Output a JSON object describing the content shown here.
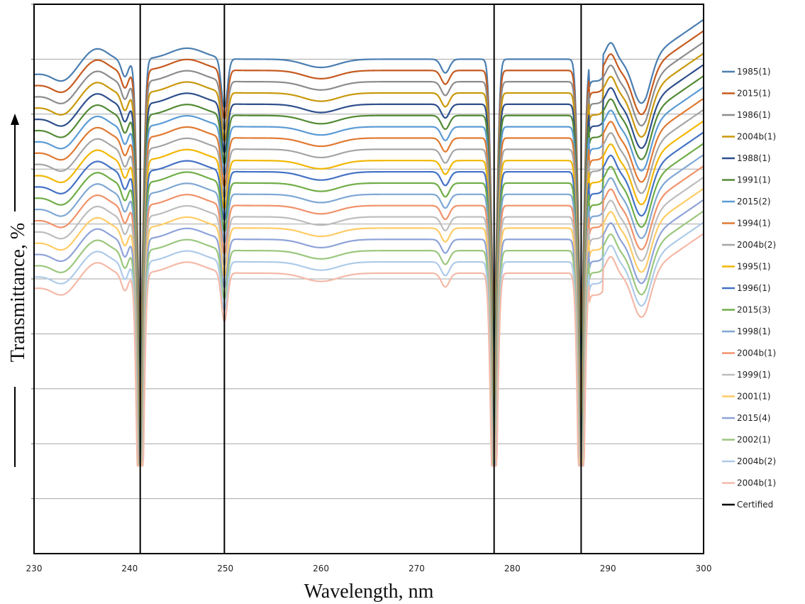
{
  "chart_data": {
    "type": "line",
    "title": "",
    "xlabel": "Wavelength, nm",
    "ylabel": "Transmittance, %",
    "xlim": [
      230,
      300
    ],
    "x_ticks": [
      230,
      240,
      250,
      260,
      270,
      280,
      290,
      300
    ],
    "x_tick_labels": [
      "230",
      "240",
      "250",
      "260",
      "270",
      "280",
      "290",
      "300"
    ],
    "ylim": [
      0,
      100
    ],
    "y_gridlines": [
      10,
      20,
      30,
      40,
      50,
      60,
      70,
      80,
      90,
      100
    ],
    "y_tick_labels_shown": false,
    "grid": true,
    "legend_position": "right",
    "certified_lines": [
      241.1,
      249.9,
      278.1,
      287.2
    ],
    "series": [
      {
        "name": "1985(1)",
        "color": "#4a7eb0",
        "offset": 0
      },
      {
        "name": "2015(1)",
        "color": "#c55a1e",
        "offset": 1
      },
      {
        "name": "1986(1)",
        "color": "#8c8c8c",
        "offset": 2
      },
      {
        "name": "2004b(1)",
        "color": "#c9980c",
        "offset": 3
      },
      {
        "name": "1988(1)",
        "color": "#2e4f8c",
        "offset": 4
      },
      {
        "name": "1991(1)",
        "color": "#538a35",
        "offset": 5
      },
      {
        "name": "2015(2)",
        "color": "#5b9bd5",
        "offset": 6
      },
      {
        "name": "1994(1)",
        "color": "#e07a32",
        "offset": 7
      },
      {
        "name": "2004b(2)",
        "color": "#a5a5a5",
        "offset": 8
      },
      {
        "name": "1995(1)",
        "color": "#f2b705",
        "offset": 9
      },
      {
        "name": "1996(1)",
        "color": "#4472c4",
        "offset": 10
      },
      {
        "name": "2015(3)",
        "color": "#70ad47",
        "offset": 11
      },
      {
        "name": "1998(1)",
        "color": "#7fa7d3",
        "offset": 12
      },
      {
        "name": "2004b(1)",
        "color": "#f0926a",
        "offset": 13
      },
      {
        "name": "1999(1)",
        "color": "#bdbdbd",
        "offset": 14
      },
      {
        "name": "2001(1)",
        "color": "#ffcc66",
        "offset": 15
      },
      {
        "name": "2015(4)",
        "color": "#8ea3d8",
        "offset": 16
      },
      {
        "name": "2002(1)",
        "color": "#9bc77e",
        "offset": 17
      },
      {
        "name": "2004b(2)",
        "color": "#aecbe8",
        "offset": 18
      },
      {
        "name": "2004b(1)",
        "color": "#f4b9a8",
        "offset": 19
      },
      {
        "name": "Certified",
        "color": "#000000",
        "offset": null
      }
    ]
  }
}
